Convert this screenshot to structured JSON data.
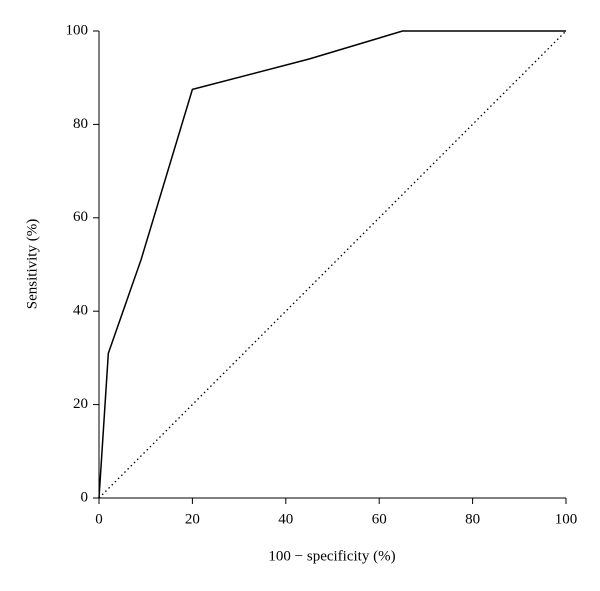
{
  "chart_data": {
    "type": "line",
    "x_label": "100 − specificity (%)",
    "y_label": "Sensitivity (%)",
    "series": [
      {
        "color": "#000000",
        "style": "solid",
        "x": [
          0,
          2,
          9,
          20,
          45,
          65,
          100
        ],
        "values": [
          0,
          31,
          51,
          87.5,
          94,
          100,
          100
        ]
      },
      {
        "color": "#000000",
        "style": "dotted",
        "x": [
          0,
          100
        ],
        "values": [
          0,
          100
        ]
      }
    ],
    "xlim": [
      0,
      100
    ],
    "xticks": [
      0,
      20,
      40,
      60,
      80,
      100
    ],
    "ylim": [
      0,
      100
    ],
    "yticks": [
      0,
      20,
      40,
      60,
      80,
      100
    ],
    "grid": false
  }
}
